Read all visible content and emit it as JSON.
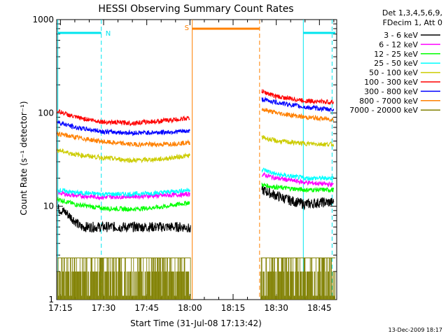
{
  "chart_data": {
    "type": "line",
    "title": "HESSI Observing Summary Count Rates",
    "xlabel": "Start Time (31-Jul-08 17:13:42)",
    "ylabel": "Count Rate (s⁻¹ detector⁻¹)",
    "x_ticks": [
      "17:15",
      "17:30",
      "17:45",
      "18:00",
      "18:15",
      "18:30",
      "18:45"
    ],
    "x_tick_minutes": [
      15,
      30,
      45,
      60,
      75,
      90,
      105
    ],
    "x_range_minutes": [
      13.7,
      111
    ],
    "y_scale": "log",
    "y_ticks": [
      "1",
      "10",
      "100",
      "1000"
    ],
    "y_tick_values": [
      1,
      10,
      100,
      1000
    ],
    "ylim": [
      1,
      1000
    ],
    "legend_title": [
      "Det 1,3,4,5,6,9,",
      "FDecim 1, Att 0"
    ],
    "legend_placement": "right",
    "footer": "13-Dec-2009 18:17",
    "series": [
      {
        "name": "3 - 6 keV",
        "color": "#000000",
        "seg1": [
          [
            14,
            9.5
          ],
          [
            17,
            8.5
          ],
          [
            20,
            7
          ],
          [
            22,
            6
          ],
          [
            30,
            6
          ],
          [
            40,
            6
          ],
          [
            50,
            6
          ],
          [
            59,
            6
          ],
          [
            60.3,
            5.5
          ]
        ],
        "seg2": [
          [
            85,
            15
          ],
          [
            90,
            13
          ],
          [
            95,
            11.5
          ],
          [
            100,
            10.5
          ],
          [
            106,
            11
          ],
          [
            110,
            11
          ]
        ]
      },
      {
        "name": "6 - 12 keV",
        "color": "#ff00ff",
        "seg1": [
          [
            14,
            14
          ],
          [
            20,
            13
          ],
          [
            30,
            12.5
          ],
          [
            40,
            12.8
          ],
          [
            50,
            13
          ],
          [
            60,
            13.5
          ]
        ],
        "seg2": [
          [
            85,
            22
          ],
          [
            90,
            20
          ],
          [
            100,
            18
          ],
          [
            110,
            17
          ]
        ]
      },
      {
        "name": "12 - 25 keV",
        "color": "#00ff00",
        "seg1": [
          [
            14,
            12
          ],
          [
            20,
            10.5
          ],
          [
            30,
            9.5
          ],
          [
            40,
            9.3
          ],
          [
            50,
            9.8
          ],
          [
            60,
            11
          ]
        ],
        "seg2": [
          [
            85,
            17
          ],
          [
            90,
            16
          ],
          [
            100,
            15
          ],
          [
            110,
            15
          ]
        ]
      },
      {
        "name": "25 - 50 keV",
        "color": "#00ffff",
        "seg1": [
          [
            14,
            15
          ],
          [
            20,
            14
          ],
          [
            30,
            13.5
          ],
          [
            40,
            13.5
          ],
          [
            50,
            14
          ],
          [
            60,
            15
          ]
        ],
        "seg2": [
          [
            85,
            25
          ],
          [
            90,
            22
          ],
          [
            100,
            20
          ],
          [
            110,
            20
          ]
        ]
      },
      {
        "name": "50 - 100 keV",
        "color": "#cccc00",
        "seg1": [
          [
            14,
            40
          ],
          [
            20,
            36
          ],
          [
            30,
            33
          ],
          [
            40,
            31
          ],
          [
            50,
            32
          ],
          [
            60,
            35
          ]
        ],
        "seg2": [
          [
            85,
            55
          ],
          [
            90,
            50
          ],
          [
            100,
            47
          ],
          [
            110,
            46
          ]
        ]
      },
      {
        "name": "100 - 300 keV",
        "color": "#ff0000",
        "seg1": [
          [
            14,
            105
          ],
          [
            20,
            90
          ],
          [
            30,
            80
          ],
          [
            40,
            78
          ],
          [
            50,
            82
          ],
          [
            60,
            88
          ]
        ],
        "seg2": [
          [
            85,
            170
          ],
          [
            90,
            150
          ],
          [
            100,
            135
          ],
          [
            110,
            130
          ]
        ]
      },
      {
        "name": "300 - 800 keV",
        "color": "#0000ff",
        "seg1": [
          [
            14,
            80
          ],
          [
            20,
            70
          ],
          [
            30,
            63
          ],
          [
            40,
            61
          ],
          [
            50,
            62
          ],
          [
            60,
            64
          ]
        ],
        "seg2": [
          [
            85,
            140
          ],
          [
            90,
            130
          ],
          [
            100,
            115
          ],
          [
            110,
            108
          ]
        ]
      },
      {
        "name": "800 - 7000 keV",
        "color": "#ff8000",
        "seg1": [
          [
            14,
            60
          ],
          [
            20,
            55
          ],
          [
            30,
            49
          ],
          [
            40,
            46
          ],
          [
            50,
            46
          ],
          [
            60,
            48
          ]
        ],
        "seg2": [
          [
            85,
            110
          ],
          [
            90,
            100
          ],
          [
            100,
            90
          ],
          [
            110,
            85
          ]
        ]
      },
      {
        "name": "7000 - 20000 keV",
        "color": "#808000",
        "seg1": [
          [
            14,
            2.8
          ],
          [
            60,
            2.8
          ]
        ],
        "seg2": [
          [
            85,
            2.8
          ],
          [
            110,
            2.8
          ]
        ]
      }
    ],
    "annotations": [
      {
        "label": "N",
        "color": "#00e5ee"
      },
      {
        "label": "S",
        "color": "#ff8000"
      }
    ]
  }
}
